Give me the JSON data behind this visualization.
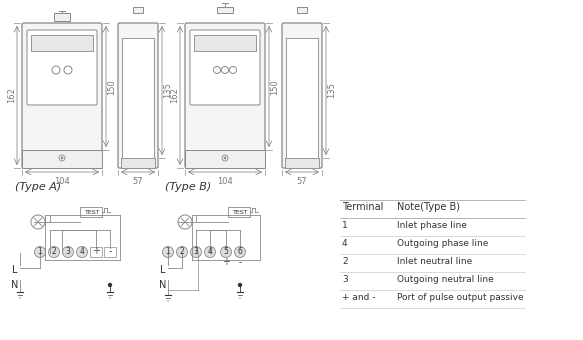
{
  "bg_color": "#ffffff",
  "line_color": "#888888",
  "dark_line": "#555555",
  "title": "",
  "table_headers": [
    "Terminal",
    "Note(Type B)"
  ],
  "table_rows": [
    [
      "1",
      "Inlet phase line"
    ],
    [
      "4",
      "Outgoing phase line"
    ],
    [
      "2",
      "Inlet neutral line"
    ],
    [
      "3",
      "Outgoing neutral line"
    ],
    [
      "+ and -",
      "Port of pulse output passive"
    ]
  ],
  "dim_color": "#777777",
  "font_size_small": 6,
  "font_size_medium": 7,
  "font_size_large": 8
}
